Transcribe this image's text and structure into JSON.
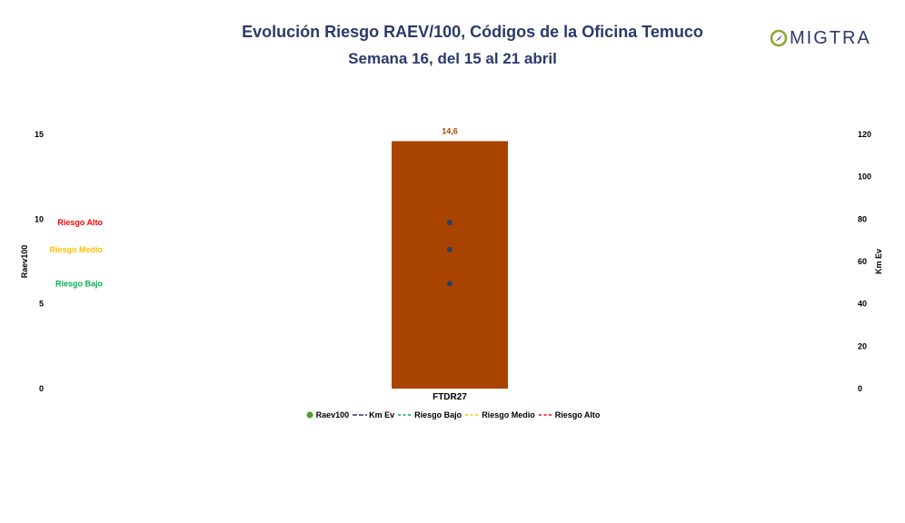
{
  "header": {
    "title": "Evolución Riesgo RAEV/100, Códigos de la Oficina Temuco",
    "subtitle": "Semana 16, del 15 al 21 abril"
  },
  "logo": {
    "text": "MIGTRA",
    "icon": "compass-o-icon",
    "color": "#2b3a6b",
    "accent": "#8fa832"
  },
  "chart_data": {
    "type": "bar",
    "categories": [
      "FTDR27"
    ],
    "ylabel": "Raev100",
    "y2label": "Km Ev",
    "ylim": [
      0,
      15
    ],
    "y2lim": [
      0,
      120
    ],
    "yticks": [
      "0",
      "5",
      "10",
      "15"
    ],
    "y2ticks": [
      "0",
      "20",
      "40",
      "60",
      "80",
      "100",
      "120"
    ],
    "grid": false,
    "legend_position": "bottom",
    "series": [
      {
        "name": "Raev100",
        "kind": "bar",
        "axis": "left",
        "values": [
          14.6
        ],
        "data_labels": [
          "14,6"
        ],
        "color": "#a94400",
        "legend_color": "#5b9a3a"
      },
      {
        "name": "Km Ev",
        "kind": "line",
        "axis": "right",
        "values": [
          null
        ],
        "color": "#2b3a6b"
      },
      {
        "name": "Riesgo Bajo",
        "kind": "line",
        "axis": "left",
        "values": [
          6.2
        ],
        "color": "#00b050",
        "dash": true
      },
      {
        "name": "Riesgo Medio",
        "kind": "line",
        "axis": "left",
        "values": [
          8.2
        ],
        "color": "#ffc000",
        "dash": true
      },
      {
        "name": "Riesgo Alto",
        "kind": "line",
        "axis": "left",
        "values": [
          9.8
        ],
        "color": "#ff0000",
        "dash": true
      }
    ],
    "risk_labels": [
      {
        "text": "Riesgo Alto",
        "value": 9.8,
        "color": "#ff0000"
      },
      {
        "text": "Riesgo Medio",
        "value": 8.2,
        "color": "#ffc000"
      },
      {
        "text": "Riesgo Bajo",
        "value": 6.2,
        "color": "#00b050"
      }
    ]
  }
}
